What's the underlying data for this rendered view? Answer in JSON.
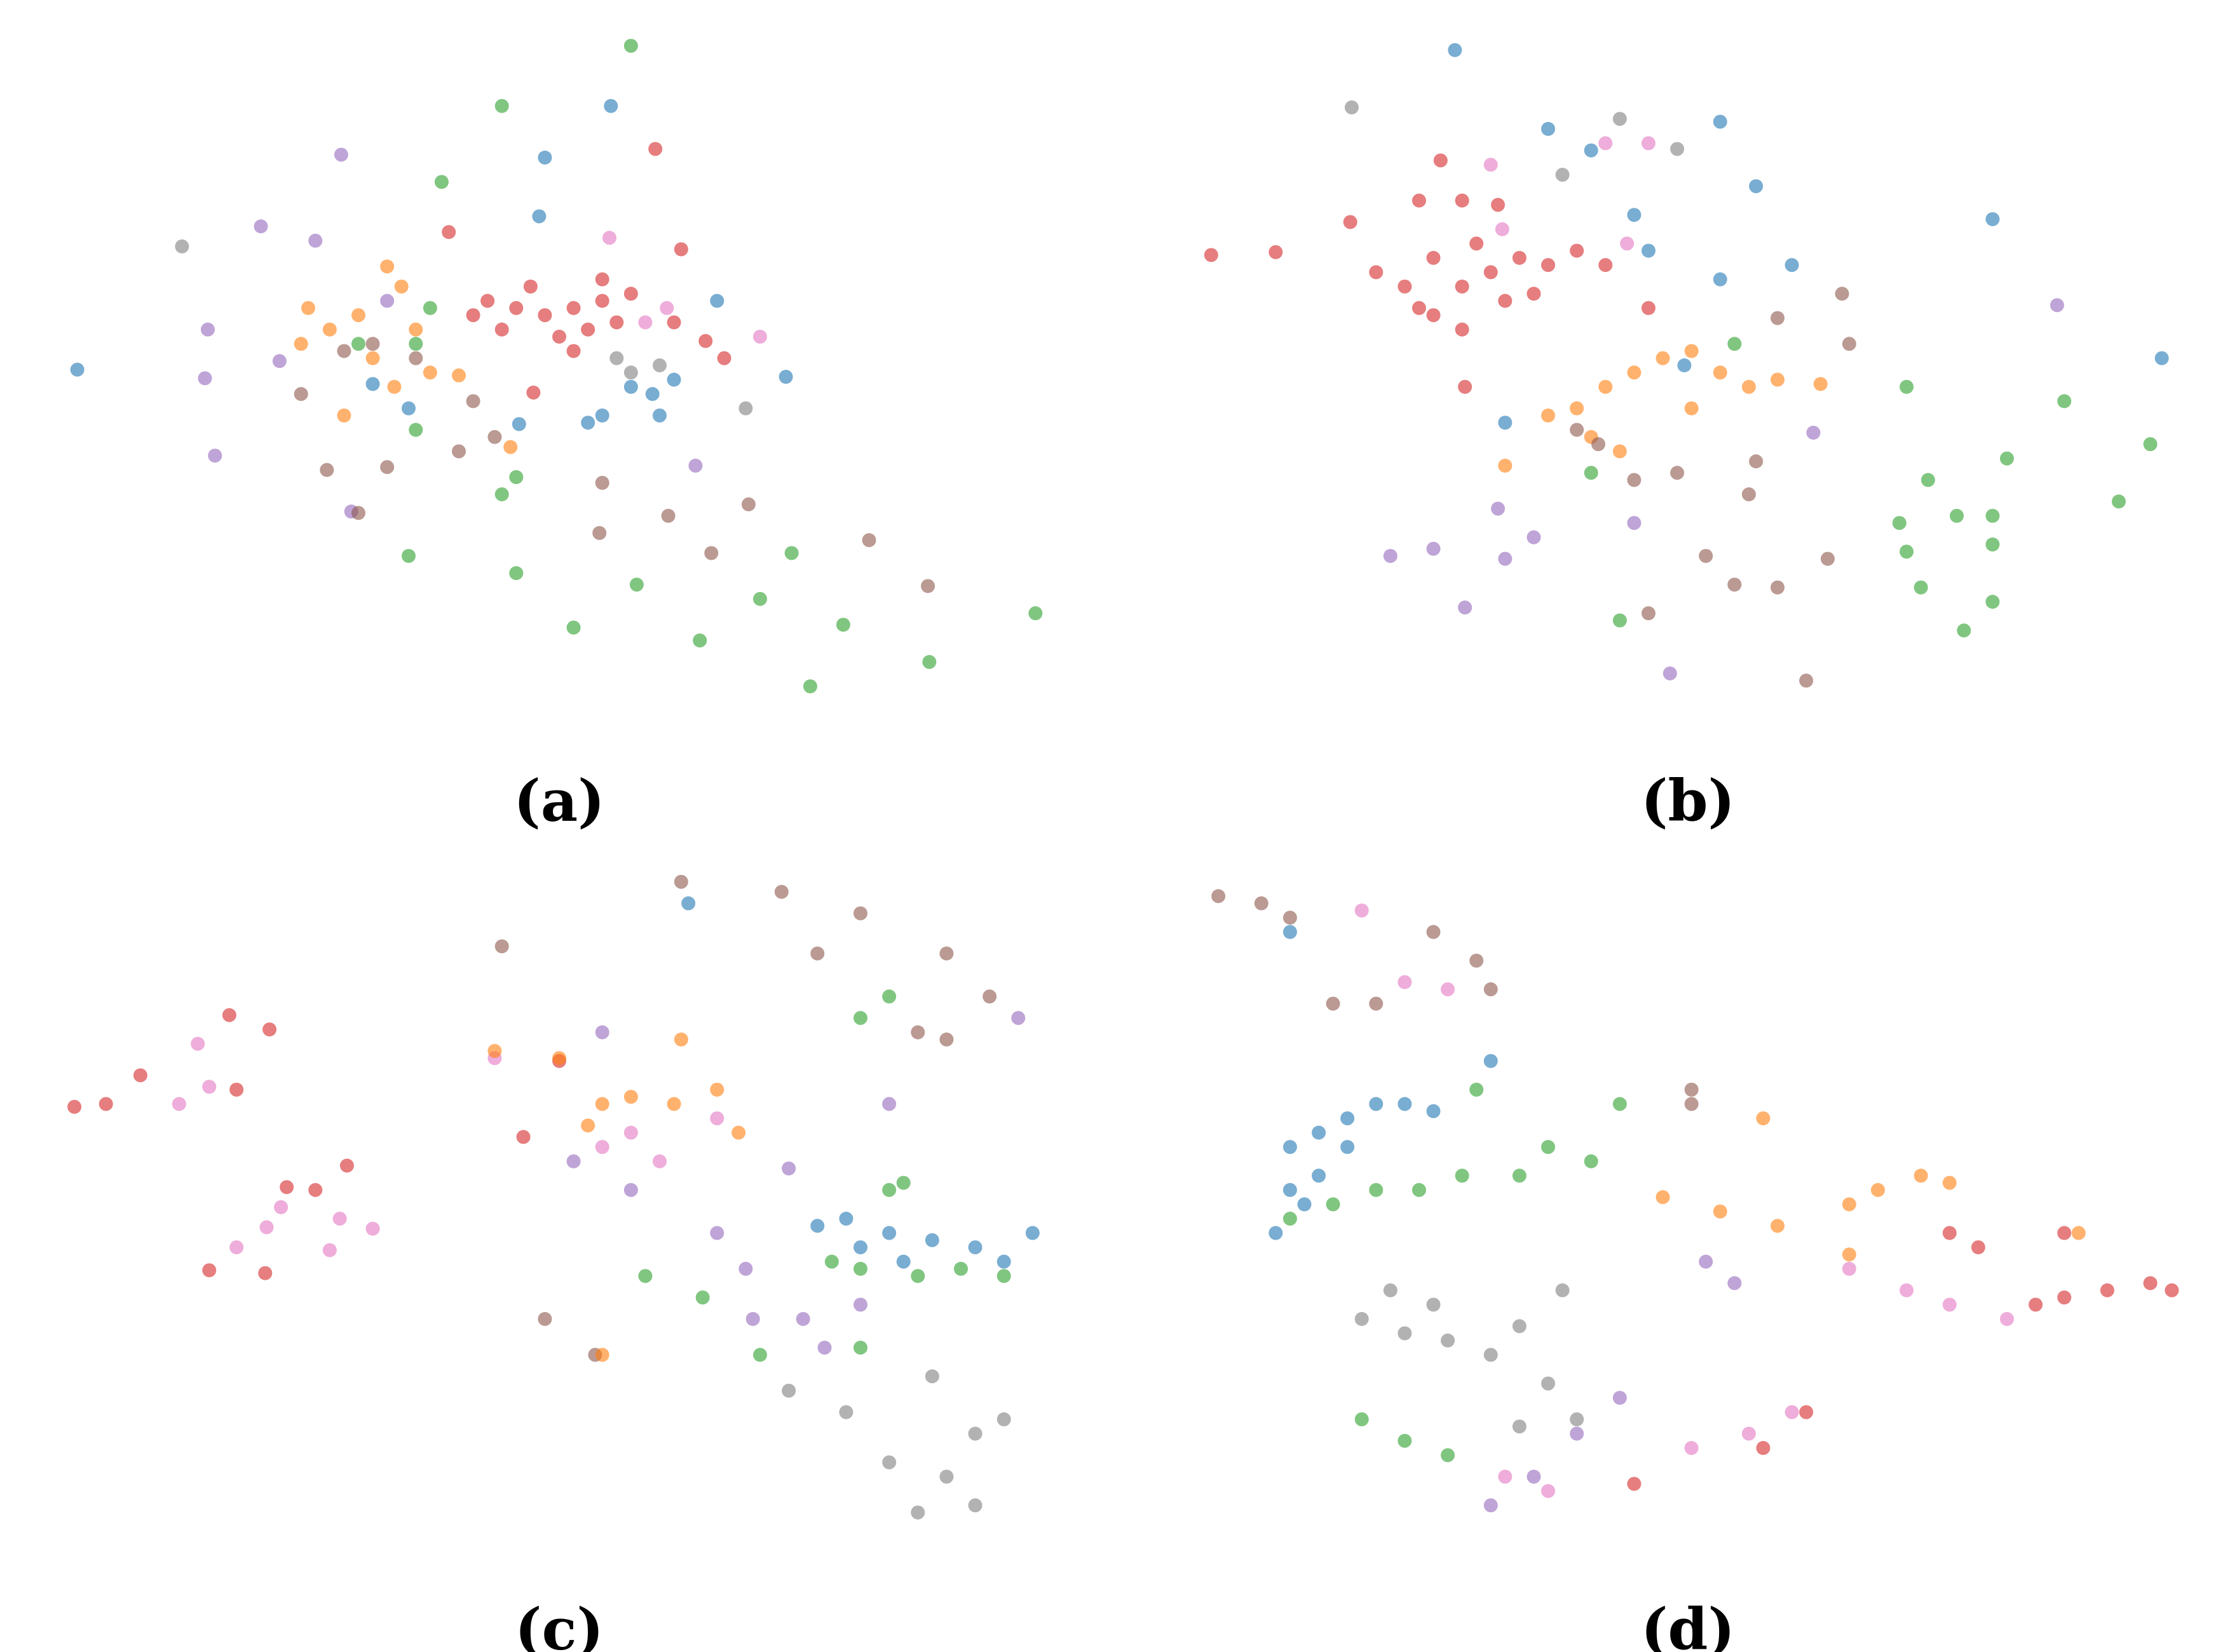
{
  "chart_data": [
    {
      "type": "scatter",
      "caption": "(a)",
      "xlim": [
        40,
        740
      ],
      "ylim": [
        490,
        20
      ],
      "series": [
        {
          "color": "#2ca02c",
          "x": [
            440,
            350,
            308,
            290,
            290,
            350,
            285,
            360,
            400,
            488,
            444,
            530,
            552,
            588,
            565,
            648,
            722,
            300,
            360,
            250
          ],
          "y": [
            32,
            74,
            127,
            240,
            300,
            345,
            388,
            400,
            438,
            447,
            408,
            418,
            386,
            436,
            479,
            462,
            428,
            215,
            333,
            240
          ]
        },
        {
          "color": "#1f77b4",
          "x": [
            426,
            380,
            376,
            54,
            500,
            548,
            440,
            460,
            410,
            455,
            470,
            420,
            362,
            285,
            260
          ],
          "y": [
            74,
            110,
            151,
            258,
            210,
            263,
            270,
            290,
            295,
            275,
            265,
            290,
            296,
            285,
            268
          ]
        },
        {
          "color": "#d62728",
          "x": [
            457,
            313,
            475,
            340,
            360,
            380,
            400,
            420,
            430,
            350,
            390,
            410,
            370,
            420,
            440,
            330,
            400,
            492,
            470,
            372,
            505
          ],
          "y": [
            104,
            162,
            174,
            210,
            215,
            220,
            215,
            210,
            225,
            230,
            235,
            230,
            200,
            195,
            205,
            220,
            245,
            238,
            225,
            274,
            250
          ]
        },
        {
          "color": "#9467bd",
          "x": [
            238,
            182,
            220,
            145,
            143,
            150,
            195,
            485,
            245,
            270
          ],
          "y": [
            108,
            158,
            168,
            230,
            264,
            318,
            252,
            325,
            357,
            210
          ]
        },
        {
          "color": "#7f7f7f",
          "x": [
            127,
            440,
            520,
            430,
            460
          ],
          "y": [
            172,
            260,
            285,
            250,
            255
          ]
        },
        {
          "color": "#ff7f0e",
          "x": [
            270,
            215,
            230,
            210,
            250,
            290,
            300,
            240,
            320,
            260,
            275,
            280,
            356
          ],
          "y": [
            186,
            215,
            230,
            240,
            220,
            230,
            260,
            290,
            262,
            250,
            270,
            200,
            312
          ]
        },
        {
          "color": "#8c564b",
          "x": [
            210,
            240,
            260,
            228,
            270,
            320,
            345,
            420,
            418,
            466,
            522,
            496,
            606,
            647,
            250,
            330,
            290
          ],
          "y": [
            275,
            245,
            240,
            328,
            326,
            315,
            305,
            337,
            372,
            360,
            352,
            386,
            377,
            409,
            358,
            280,
            250
          ]
        },
        {
          "color": "#e377c2",
          "x": [
            425,
            465,
            530,
            450
          ],
          "y": [
            166,
            215,
            235,
            225
          ]
        }
      ]
    },
    {
      "type": "scatter",
      "caption": "(b)",
      "xlim": [
        830,
        1525
      ],
      "ylim": [
        490,
        20
      ],
      "series": [
        {
          "color": "#d62728",
          "x": [
            845,
            890,
            942,
            990,
            1020,
            960,
            980,
            1000,
            1020,
            1040,
            1060,
            1080,
            1000,
            1020,
            990,
            1050,
            1100,
            1120,
            1030,
            1045,
            1022,
            1070,
            1150,
            1005
          ],
          "y": [
            178,
            176,
            155,
            140,
            140,
            190,
            200,
            180,
            200,
            190,
            180,
            185,
            220,
            230,
            215,
            210,
            175,
            185,
            170,
            143,
            270,
            205,
            215,
            112
          ]
        },
        {
          "color": "#1f77b4",
          "x": [
            1015,
            1080,
            1110,
            1200,
            1225,
            1140,
            1150,
            1200,
            1250,
            1390,
            1508,
            1175,
            1050
          ],
          "y": [
            35,
            90,
            105,
            85,
            130,
            150,
            175,
            195,
            185,
            153,
            250,
            255,
            295
          ]
        },
        {
          "color": "#7f7f7f",
          "x": [
            943,
            1130,
            1170,
            1090
          ],
          "y": [
            75,
            83,
            104,
            122
          ]
        },
        {
          "color": "#e377c2",
          "x": [
            1040,
            1120,
            1150,
            1048,
            1135
          ],
          "y": [
            115,
            100,
            100,
            160,
            170
          ]
        },
        {
          "color": "#ff7f0e",
          "x": [
            1050,
            1080,
            1100,
            1120,
            1140,
            1160,
            1180,
            1200,
            1220,
            1240,
            1270,
            1110,
            1130,
            1180
          ],
          "y": [
            325,
            290,
            285,
            270,
            260,
            250,
            245,
            260,
            270,
            265,
            268,
            305,
            315,
            285
          ]
        },
        {
          "color": "#8c564b",
          "x": [
            1285,
            1290,
            1240,
            1100,
            1115,
            1225,
            1220,
            1190,
            1210,
            1240,
            1275,
            1150,
            1260,
            1140,
            1170
          ],
          "y": [
            205,
            240,
            222,
            300,
            310,
            322,
            345,
            388,
            408,
            410,
            390,
            428,
            475,
            335,
            330
          ]
        },
        {
          "color": "#2ca02c",
          "x": [
            1210,
            1330,
            1440,
            1500,
            1345,
            1365,
            1390,
            1400,
            1478,
            1330,
            1390,
            1340,
            1390,
            1130,
            1370,
            1110,
            1325
          ],
          "y": [
            240,
            270,
            280,
            310,
            335,
            360,
            360,
            320,
            350,
            385,
            380,
            410,
            420,
            433,
            440,
            330,
            365
          ]
        },
        {
          "color": "#9467bd",
          "x": [
            1435,
            1265,
            1045,
            1070,
            1050,
            1000,
            970,
            1140,
            1022,
            1165
          ],
          "y": [
            213,
            302,
            355,
            375,
            390,
            383,
            388,
            365,
            424,
            470
          ]
        }
      ]
    },
    {
      "type": "scatter",
      "caption": "(c)",
      "xlim": [
        40,
        740
      ],
      "ylim": [
        1065,
        600
      ],
      "series": [
        {
          "color": "#d62728",
          "x": [
            160,
            188,
            98,
            52,
            74,
            165,
            242,
            220,
            200,
            146,
            185,
            365,
            390
          ],
          "y": [
            708,
            718,
            750,
            772,
            770,
            760,
            813,
            830,
            828,
            886,
            888,
            793,
            740
          ]
        },
        {
          "color": "#e377c2",
          "x": [
            138,
            125,
            146,
            196,
            186,
            237,
            260,
            230,
            165,
            345,
            440,
            420,
            460,
            500
          ],
          "y": [
            728,
            770,
            758,
            842,
            856,
            850,
            857,
            872,
            870,
            738,
            790,
            800,
            810,
            780
          ]
        },
        {
          "color": "#8c564b",
          "x": [
            350,
            475,
            545,
            600,
            570,
            660,
            690,
            380,
            415,
            640,
            660
          ],
          "y": [
            660,
            615,
            622,
            637,
            665,
            665,
            695,
            920,
            945,
            720,
            725
          ]
        },
        {
          "color": "#ff7f0e",
          "x": [
            345,
            390,
            475,
            420,
            440,
            470,
            500,
            515,
            410,
            420
          ],
          "y": [
            733,
            738,
            725,
            770,
            765,
            770,
            760,
            790,
            785,
            945
          ]
        },
        {
          "color": "#1f77b4",
          "x": [
            480,
            570,
            600,
            620,
            650,
            680,
            700,
            720,
            590,
            630
          ],
          "y": [
            630,
            855,
            870,
            860,
            865,
            870,
            880,
            860,
            850,
            880
          ]
        },
        {
          "color": "#2ca02c",
          "x": [
            600,
            620,
            580,
            600,
            640,
            670,
            700,
            620,
            450,
            490,
            530,
            600,
            630
          ],
          "y": [
            710,
            695,
            880,
            885,
            890,
            885,
            890,
            830,
            890,
            905,
            945,
            940,
            825
          ]
        },
        {
          "color": "#9467bd",
          "x": [
            420,
            400,
            440,
            500,
            550,
            520,
            560,
            575,
            600,
            620,
            710,
            525
          ],
          "y": [
            720,
            810,
            830,
            860,
            815,
            885,
            920,
            940,
            910,
            770,
            710,
            920
          ]
        },
        {
          "color": "#7f7f7f",
          "x": [
            650,
            680,
            700,
            620,
            660,
            680,
            640,
            590,
            550
          ],
          "y": [
            960,
            1000,
            990,
            1020,
            1030,
            1050,
            1055,
            985,
            970
          ]
        }
      ]
    },
    {
      "type": "scatter",
      "caption": "(d)",
      "xlim": [
        830,
        1525
      ],
      "ylim": [
        1065,
        600
      ],
      "series": [
        {
          "color": "#8c564b",
          "x": [
            850,
            880,
            900,
            1000,
            1030,
            930,
            960,
            1040,
            1180,
            1180
          ],
          "y": [
            625,
            630,
            640,
            650,
            670,
            700,
            700,
            690,
            760,
            770
          ]
        },
        {
          "color": "#e377c2",
          "x": [
            950,
            980,
            1010,
            1290,
            1330,
            1360,
            1400,
            1180,
            1220,
            1250,
            1080,
            1050
          ],
          "y": [
            635,
            685,
            690,
            885,
            900,
            910,
            920,
            1010,
            1000,
            985,
            1040,
            1030
          ]
        },
        {
          "color": "#1f77b4",
          "x": [
            900,
            1040,
            900,
            920,
            940,
            960,
            900,
            920,
            940,
            890,
            910,
            980,
            1000
          ],
          "y": [
            650,
            740,
            800,
            790,
            780,
            770,
            830,
            820,
            800,
            860,
            840,
            770,
            775
          ]
        },
        {
          "color": "#2ca02c",
          "x": [
            1030,
            900,
            930,
            960,
            990,
            1020,
            1060,
            1080,
            1110,
            1130,
            950,
            980,
            1010
          ],
          "y": [
            760,
            850,
            840,
            830,
            830,
            820,
            820,
            800,
            810,
            770,
            990,
            1005,
            1015
          ]
        },
        {
          "color": "#ff7f0e",
          "x": [
            1230,
            1160,
            1200,
            1240,
            1290,
            1310,
            1340,
            1360,
            1290,
            1450
          ],
          "y": [
            780,
            835,
            845,
            855,
            840,
            830,
            820,
            825,
            875,
            860
          ]
        },
        {
          "color": "#9467bd",
          "x": [
            1190,
            1210,
            1040,
            1070,
            1130,
            1100
          ],
          "y": [
            880,
            895,
            1050,
            1030,
            975,
            1000
          ]
        },
        {
          "color": "#d62728",
          "x": [
            1360,
            1380,
            1420,
            1440,
            1470,
            1500,
            1515,
            1230,
            1260,
            1140,
            1440
          ],
          "y": [
            860,
            870,
            910,
            905,
            900,
            895,
            900,
            1010,
            985,
            1035,
            860
          ]
        },
        {
          "color": "#7f7f7f",
          "x": [
            950,
            980,
            1010,
            1040,
            1060,
            970,
            1000,
            1090,
            1060,
            1100,
            1080
          ],
          "y": [
            920,
            930,
            935,
            945,
            925,
            900,
            910,
            900,
            995,
            990,
            965
          ]
        }
      ]
    }
  ]
}
